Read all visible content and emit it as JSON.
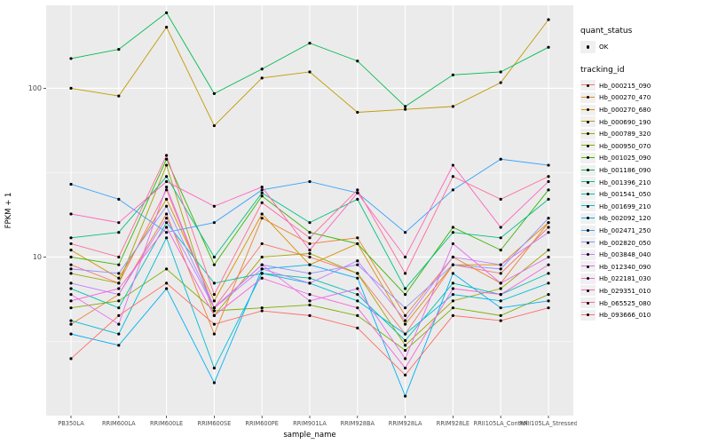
{
  "chart_data": {
    "type": "line",
    "title": "",
    "xlabel": "sample_name",
    "ylabel": "FPKM + 1",
    "y_scale": "log10",
    "y_ticks": [
      10,
      100
    ],
    "y_tick_labels": [
      "10",
      "100"
    ],
    "ylim": [
      1.15,
      310
    ],
    "grid": true,
    "panel_background": "#EBEBEB",
    "grid_color": "#FFFFFF",
    "point_color": "#000000",
    "legend_position": "right",
    "categories": [
      "PB350LA",
      "RRIM600LA",
      "RRIM600LE",
      "RRIM600SE",
      "RRIM600PE",
      "RRIM901LA",
      "RRIM928BA",
      "RRIM928LA",
      "RRIM928LE",
      "RRII105LA_Control",
      "RRII105LA_Stressed"
    ],
    "legend": {
      "quant_status_title": "quant_status",
      "quant_status_items": [
        {
          "label": "OK",
          "shape": "point"
        }
      ],
      "tracking_id_title": "tracking_id"
    },
    "series": [
      {
        "name": "Hb_000215_090",
        "color": "#F8766D",
        "values": [
          9,
          7,
          25,
          5,
          12,
          10,
          8,
          3.5,
          9,
          8,
          15
        ]
      },
      {
        "name": "Hb_000270_470",
        "color": "#EA8331",
        "values": [
          4,
          6,
          18,
          3.5,
          17,
          12,
          13,
          4.5,
          10,
          7,
          16
        ]
      },
      {
        "name": "Hb_000270_680",
        "color": "#D89000",
        "values": [
          11,
          7.5,
          22,
          5.5,
          18,
          9,
          12,
          4,
          9,
          9,
          16
        ]
      },
      {
        "name": "Hb_000690_190",
        "color": "#C09B00",
        "values": [
          100,
          90,
          230,
          60,
          115,
          125,
          72,
          75,
          78,
          108,
          255
        ]
      },
      {
        "name": "Hb_000789_320",
        "color": "#A3A500",
        "values": [
          8,
          7,
          35,
          4.5,
          10,
          10.5,
          8,
          3,
          5.5,
          6.5,
          11
        ]
      },
      {
        "name": "Hb_000950_070",
        "color": "#7CAE00",
        "values": [
          5,
          5.5,
          8.5,
          4.8,
          5,
          5.2,
          4.5,
          2.8,
          5,
          4.5,
          6
        ]
      },
      {
        "name": "Hb_001025_090",
        "color": "#39B600",
        "values": [
          10,
          9,
          38,
          9,
          23,
          14,
          12,
          6,
          15,
          11,
          25
        ]
      },
      {
        "name": "Hb_001186_090",
        "color": "#00BB4E",
        "values": [
          150,
          170,
          280,
          93,
          130,
          185,
          145,
          78,
          120,
          125,
          175
        ]
      },
      {
        "name": "Hb_001396_210",
        "color": "#00C087",
        "values": [
          13,
          14,
          30,
          10,
          24,
          16,
          22,
          6.5,
          14,
          13,
          22
        ]
      },
      {
        "name": "Hb_001541_050",
        "color": "#00C0AF",
        "values": [
          6.5,
          5,
          16,
          7,
          8,
          7.5,
          6,
          3.2,
          7,
          6,
          8
        ]
      },
      {
        "name": "Hb_001699_210",
        "color": "#00BCD8",
        "values": [
          4.2,
          3.5,
          13,
          2.2,
          8,
          7,
          5.5,
          3.5,
          6,
          5.5,
          7
        ]
      },
      {
        "name": "Hb_002092_120",
        "color": "#00B0F6",
        "values": [
          3.5,
          3,
          6.5,
          1.8,
          8.5,
          9,
          7.5,
          1.5,
          8,
          5,
          5.5
        ]
      },
      {
        "name": "Hb_002471_250",
        "color": "#35A2FF",
        "values": [
          27,
          22,
          14,
          16,
          25,
          28,
          24,
          14,
          25,
          38,
          35
        ]
      },
      {
        "name": "Hb_002820_050",
        "color": "#9590FF",
        "values": [
          8.5,
          8,
          20,
          5,
          9,
          8,
          9,
          5,
          9,
          8.5,
          17
        ]
      },
      {
        "name": "Hb_003848_040",
        "color": "#C77CFF",
        "values": [
          7,
          6,
          17,
          5,
          8.5,
          7,
          9.5,
          4.2,
          10,
          9,
          14
        ]
      },
      {
        "name": "Hb_012340_090",
        "color": "#E76BF3",
        "values": [
          6,
          4,
          26,
          5,
          9,
          5.5,
          6.5,
          2.5,
          12,
          7,
          10
        ]
      },
      {
        "name": "Hb_022181_030",
        "color": "#FA62DB",
        "values": [
          5.5,
          6.5,
          15,
          4.5,
          7.5,
          6,
          5,
          2.2,
          6.5,
          6,
          9
        ]
      },
      {
        "name": "Hb_029351_010",
        "color": "#FF62BC",
        "values": [
          18,
          16,
          28,
          20,
          26,
          11,
          24,
          10,
          35,
          15,
          28
        ]
      },
      {
        "name": "Hb_065525_080",
        "color": "#FF6A98",
        "values": [
          12,
          10,
          40,
          6,
          21,
          13,
          25,
          8,
          30,
          22,
          30
        ]
      },
      {
        "name": "Hb_093666_010",
        "color": "#FF6C67",
        "values": [
          2.5,
          4.5,
          7,
          4,
          4.8,
          4.5,
          3.8,
          2,
          4.5,
          4.2,
          5
        ]
      }
    ]
  }
}
